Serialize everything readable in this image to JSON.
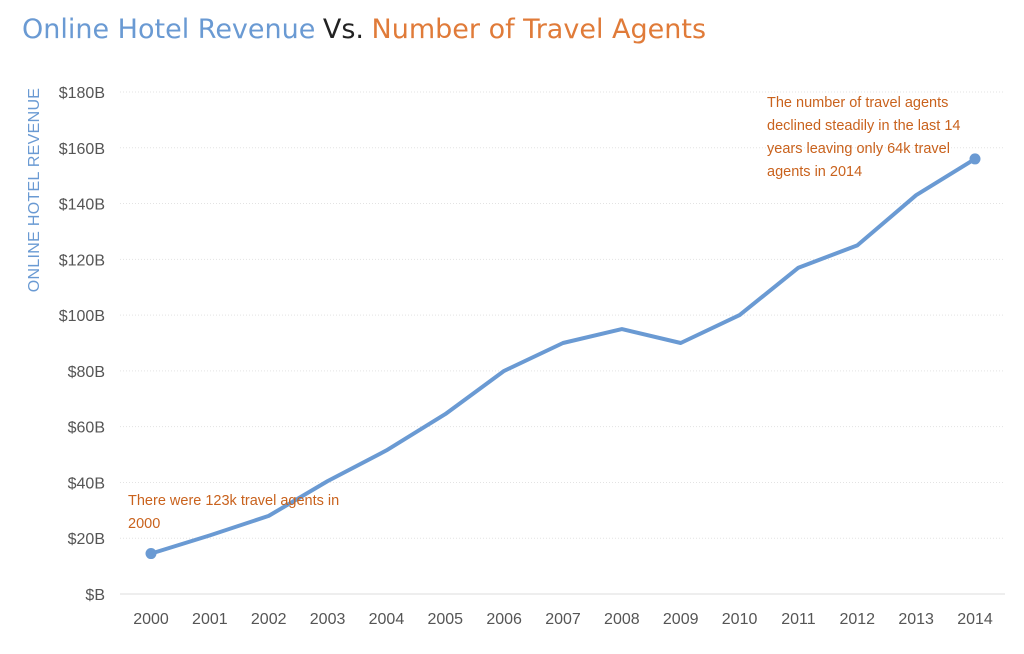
{
  "colors": {
    "revenue": "#6a9ad3",
    "agents": "#e07b39",
    "annotation": "#c9621d",
    "grid": "#e3e3e3",
    "tick": "#555555"
  },
  "title": {
    "part1": "Online Hotel Revenue",
    "part2": "Vs.",
    "part3": "Number of Travel Agents"
  },
  "chart_data": {
    "type": "line",
    "title": "Online Hotel Revenue Vs. Number of Travel Agents",
    "xlabel": "",
    "ylabel": "ONLINE HOTEL REVENUE",
    "categories": [
      "2000",
      "2001",
      "2002",
      "2003",
      "2004",
      "2005",
      "2006",
      "2007",
      "2008",
      "2009",
      "2010",
      "2011",
      "2012",
      "2013",
      "2014"
    ],
    "series": [
      {
        "values": [
          14.5,
          21,
          28,
          40.5,
          51.5,
          64.5,
          80,
          90,
          95,
          90,
          100,
          117,
          125,
          143,
          156
        ]
      }
    ],
    "ylim": [
      0,
      180
    ],
    "yticks": [
      0,
      20,
      40,
      60,
      80,
      100,
      120,
      140,
      160,
      180
    ],
    "ytick_labels": [
      "$B",
      "$20B",
      "$40B",
      "$60B",
      "$80B",
      "$100B",
      "$120B",
      "$140B",
      "$160B",
      "$180B"
    ],
    "grid": true,
    "markers_at": [
      "2000",
      "2014"
    ],
    "annotations": [
      {
        "text": "There were 123k travel agents in 2000",
        "at": "2000"
      },
      {
        "text": "The number of travel agents declined steadily in the last 14 years leaving only 64k travel agents in 2014",
        "at": "2014"
      }
    ]
  }
}
